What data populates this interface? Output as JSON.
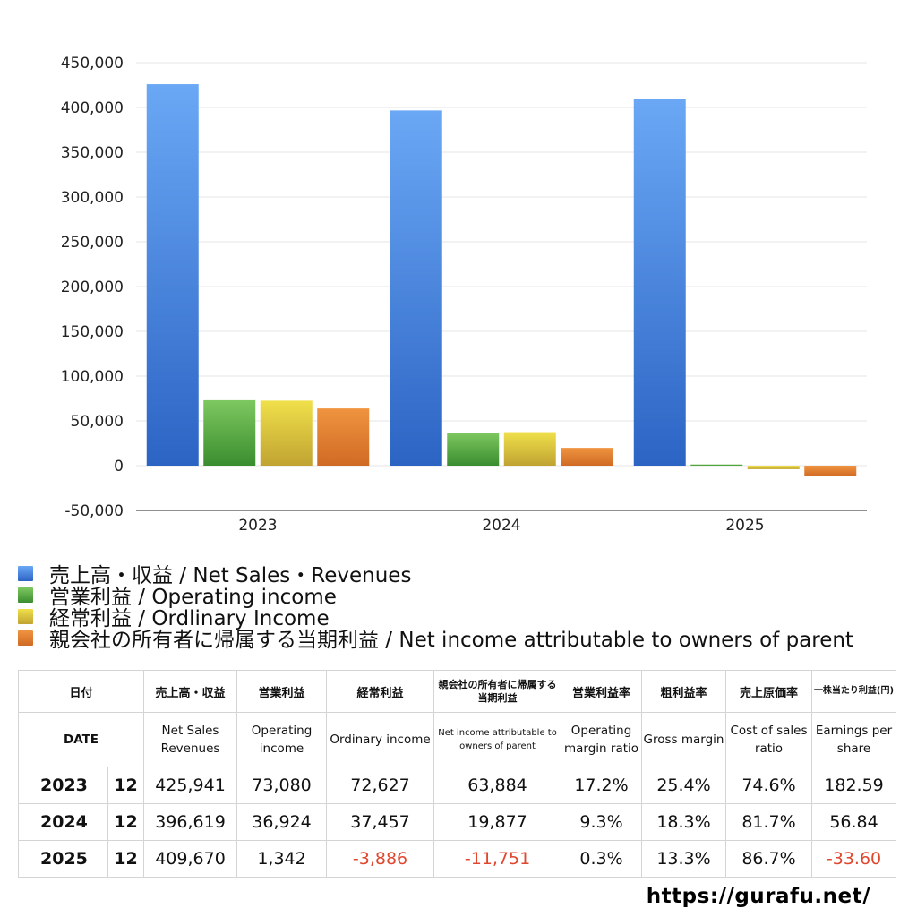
{
  "chart_data": {
    "type": "bar",
    "categories": [
      "2023",
      "2024",
      "2025"
    ],
    "series": [
      {
        "name": "売上高・収益 / Net Sales・Revenues",
        "values": [
          425941,
          396619,
          409670
        ],
        "color_top": "#6aa8f5",
        "color_bottom": "#2c64c4"
      },
      {
        "name": "営業利益 / Operating income",
        "values": [
          73080,
          36924,
          1342
        ],
        "color_top": "#7ec860",
        "color_bottom": "#3a8d2f"
      },
      {
        "name": "経常利益 / Ordlinary Income",
        "values": [
          72627,
          37457,
          -3886
        ],
        "color_top": "#f0e04a",
        "color_bottom": "#c0a332"
      },
      {
        "name": "親会社の所有者に帰属する当期利益 / Net income attributable to owners of parent",
        "values": [
          63884,
          19877,
          -11751
        ],
        "color_top": "#ef9440",
        "color_bottom": "#d06a24"
      }
    ],
    "ylim": [
      -50000,
      450000
    ],
    "yticks": [
      450000,
      400000,
      350000,
      300000,
      250000,
      200000,
      150000,
      100000,
      50000,
      0,
      -50000
    ],
    "ytick_labels": [
      "450,000",
      "400,000",
      "350,000",
      "300,000",
      "250,000",
      "200,000",
      "150,000",
      "100,000",
      "50,000",
      "0",
      "-50,000"
    ],
    "grid": true,
    "legend_position": "bottom-left",
    "title": "",
    "xlabel": "",
    "ylabel": ""
  },
  "table": {
    "headers_ja": [
      "日付",
      "売上高・収益",
      "営業利益",
      "経常利益",
      "親会社の所有者に帰属する当期利益",
      "営業利益率",
      "粗利益率",
      "売上原価率",
      "一株当たり利益(円)"
    ],
    "headers_en": [
      "DATE",
      "Net Sales Revenues",
      "Operating income",
      "Ordinary income",
      "Net income attributable to owners of parent",
      "Operating margin ratio",
      "Gross margin",
      "Cost of sales ratio",
      "Earnings per share"
    ],
    "rows": [
      {
        "year": "2023",
        "month": "12",
        "cells": [
          "425,941",
          "73,080",
          "72,627",
          "63,884",
          "17.2%",
          "25.4%",
          "74.6%",
          "182.59"
        ]
      },
      {
        "year": "2024",
        "month": "12",
        "cells": [
          "396,619",
          "36,924",
          "37,457",
          "19,877",
          "9.3%",
          "18.3%",
          "81.7%",
          "56.84"
        ]
      },
      {
        "year": "2025",
        "month": "12",
        "cells": [
          "409,670",
          "1,342",
          "-3,886",
          "-11,751",
          "0.3%",
          "13.3%",
          "86.7%",
          "-33.60"
        ]
      }
    ]
  },
  "footer": {
    "url": "https://gurafu.net/"
  }
}
